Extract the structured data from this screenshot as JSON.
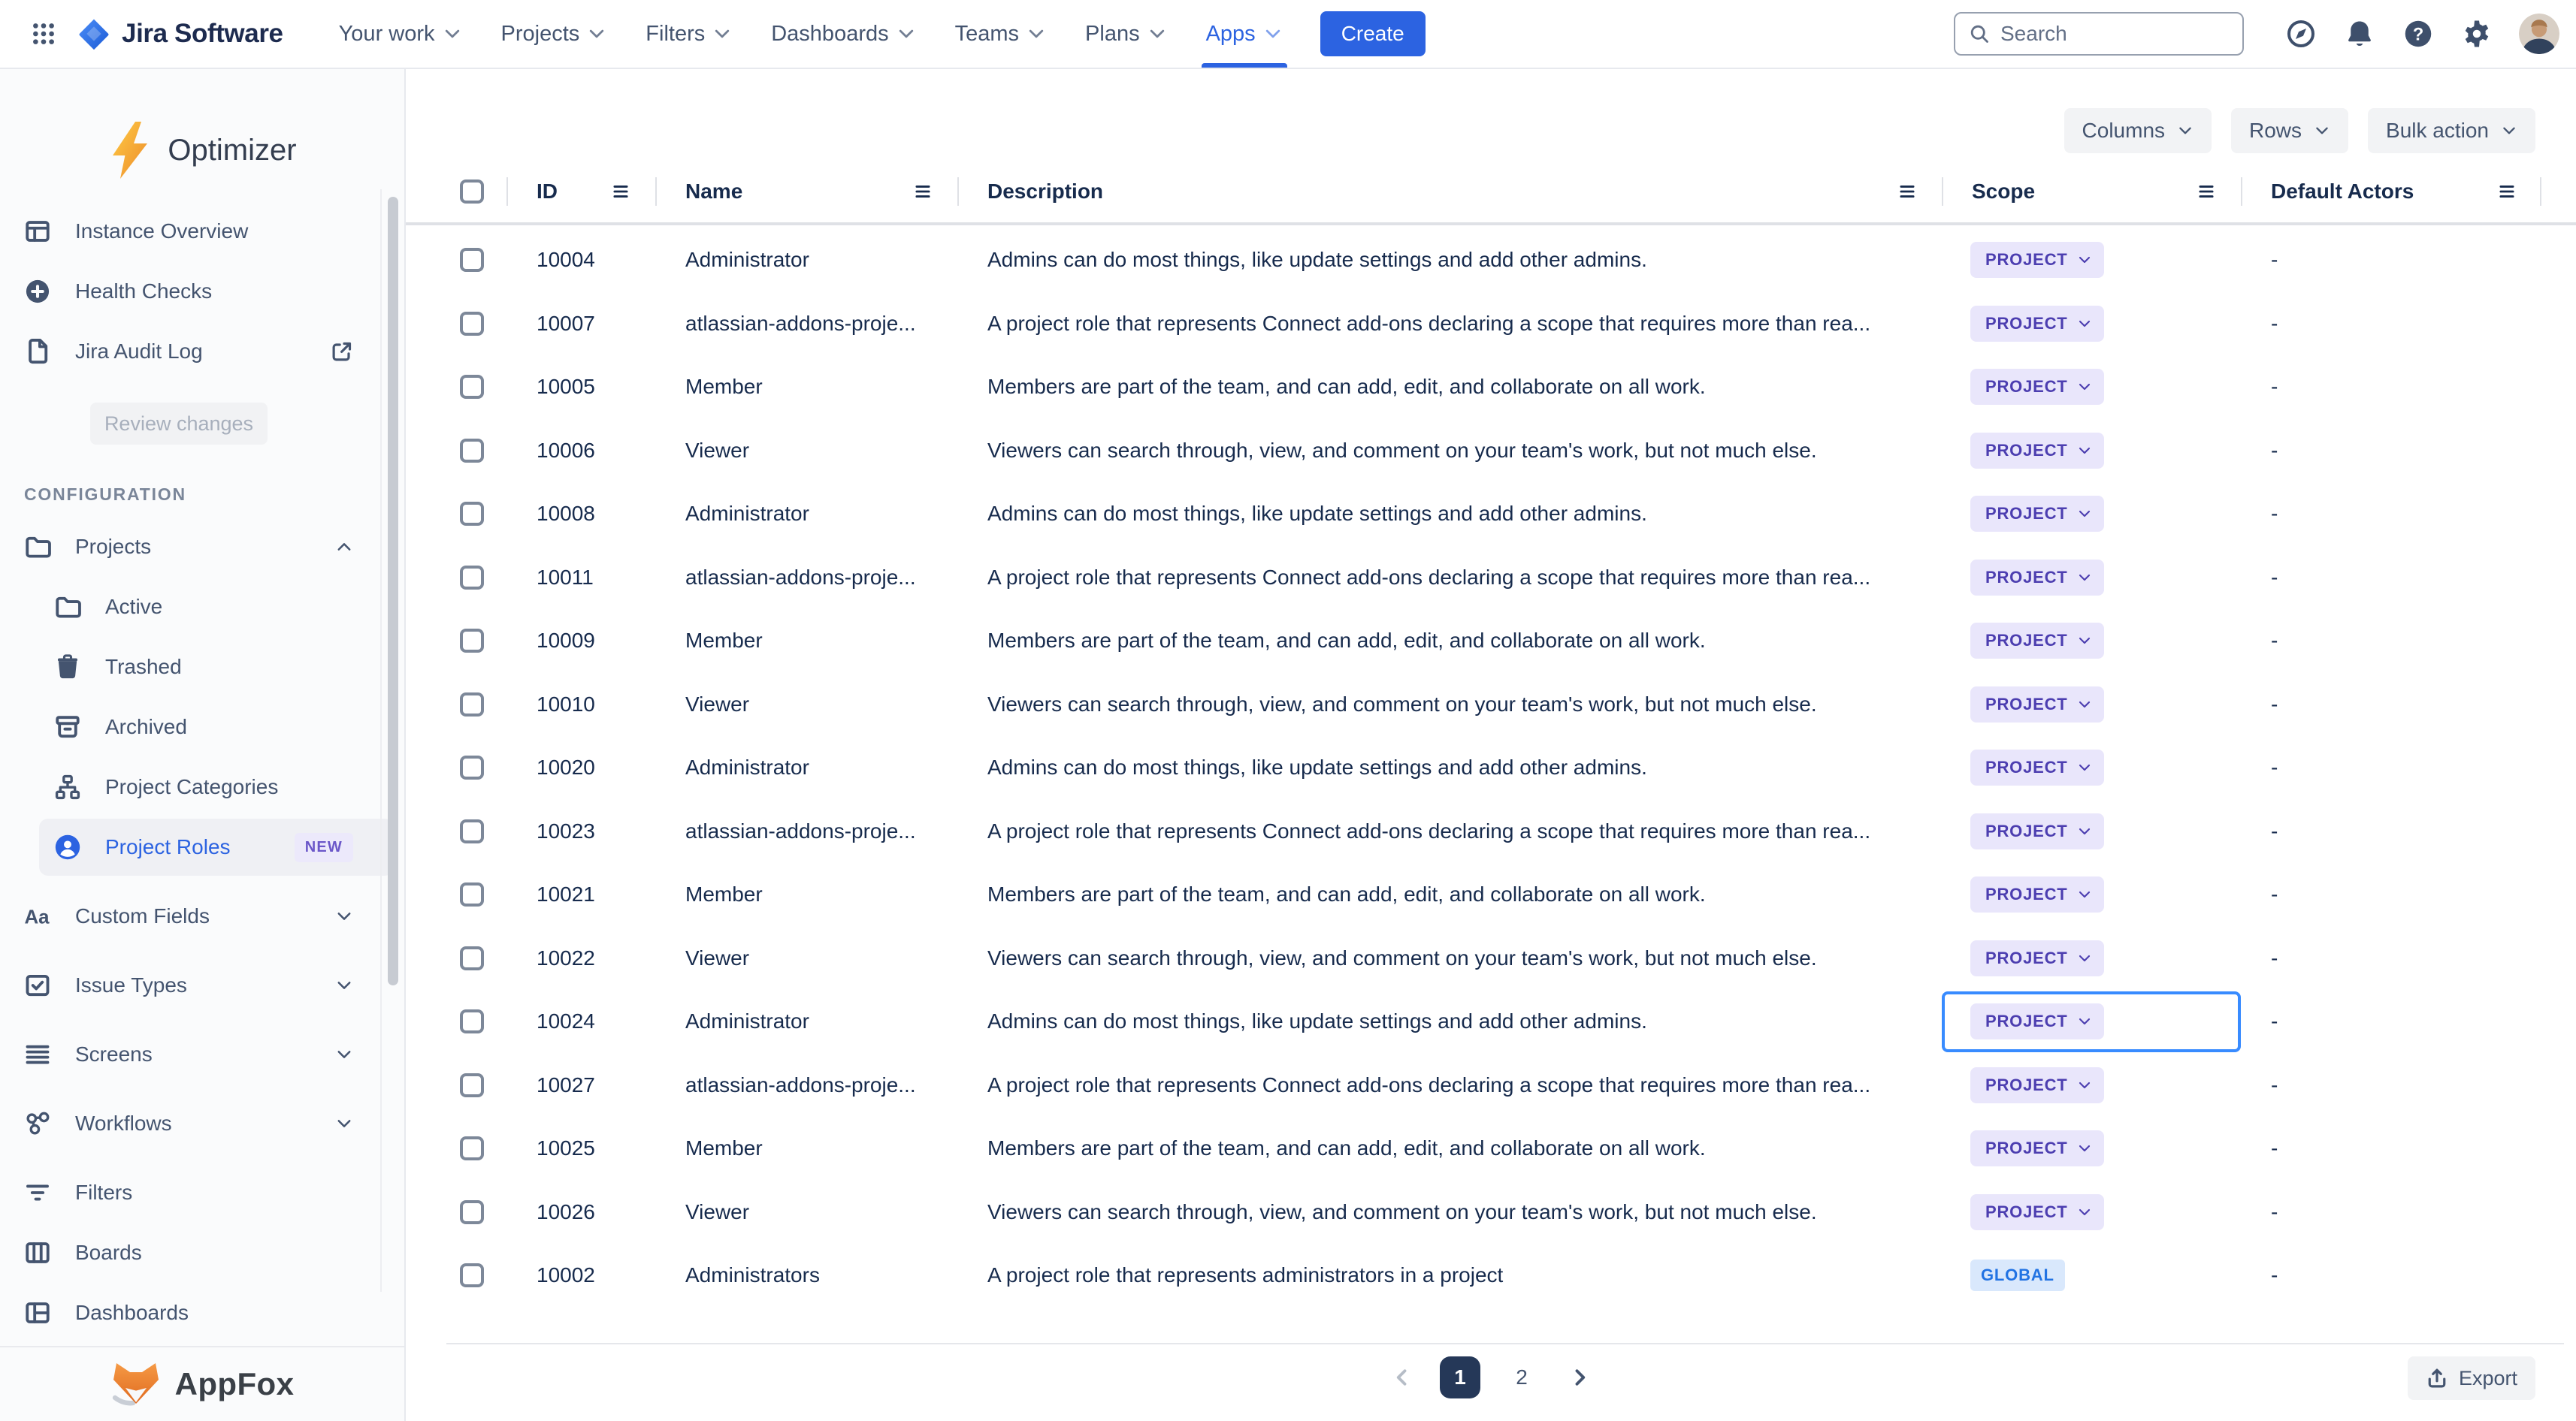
{
  "colors": {
    "accent_blue": "#2C63E1",
    "navy_text": "#172B4D",
    "muted_text": "#44546F",
    "scope_badge_bg": "#E9E6FB",
    "scope_badge_text": "#4C3EB0",
    "global_badge_bg": "#D9E8FC",
    "global_badge_text": "#2273E3",
    "focus_ring": "#388BFF",
    "active_page_bg": "#253858",
    "new_badge_bg": "#ECE9FB",
    "new_badge_text": "#6B57C9",
    "sidebar_bg": "#FAFBFC",
    "bolt_orange": "#EE8E2D",
    "fox_orange": "#EE7E35"
  },
  "topnav": {
    "brand": "Jira Software",
    "menu": [
      {
        "label": "Your work",
        "active": false
      },
      {
        "label": "Projects",
        "active": false
      },
      {
        "label": "Filters",
        "active": false
      },
      {
        "label": "Dashboards",
        "active": false
      },
      {
        "label": "Teams",
        "active": false
      },
      {
        "label": "Plans",
        "active": false
      },
      {
        "label": "Apps",
        "active": true
      }
    ],
    "create_label": "Create",
    "search_placeholder": "Search",
    "icon_buttons": [
      "compass-icon",
      "bell-icon",
      "help-icon",
      "gear-icon"
    ]
  },
  "sidebar": {
    "app_title": "Optimizer",
    "items_top": [
      {
        "label": "Instance Overview",
        "icon": "board-icon"
      },
      {
        "label": "Health Checks",
        "icon": "plus-circle-icon"
      },
      {
        "label": "Jira Audit Log",
        "icon": "document-icon",
        "external": true
      }
    ],
    "review_button_label": "Review changes",
    "section_title": "CONFIGURATION",
    "config_items": [
      {
        "label": "Projects",
        "icon": "folder-icon",
        "level": 0,
        "expand": "up"
      },
      {
        "label": "Active",
        "icon": "folder-icon",
        "level": 1
      },
      {
        "label": "Trashed",
        "icon": "trash-icon",
        "level": 1
      },
      {
        "label": "Archived",
        "icon": "archive-icon",
        "level": 1
      },
      {
        "label": "Project Categories",
        "icon": "sitemap-icon",
        "level": 1
      },
      {
        "label": "Project Roles",
        "icon": "user-circle-icon",
        "level": 1,
        "active": true,
        "badge": "NEW"
      },
      {
        "label": "Custom Fields",
        "icon": "text-icon",
        "level": 0,
        "expand": "down",
        "gap": true
      },
      {
        "label": "Issue Types",
        "icon": "checkbox-icon",
        "level": 0,
        "expand": "down",
        "gap": true
      },
      {
        "label": "Screens",
        "icon": "lines-icon",
        "level": 0,
        "expand": "down",
        "gap": true
      },
      {
        "label": "Workflows",
        "icon": "workflow-icon",
        "level": 0,
        "expand": "down",
        "gap": true
      },
      {
        "label": "Filters",
        "icon": "filter-lines-icon",
        "level": 0,
        "gap": true
      },
      {
        "label": "Boards",
        "icon": "columns-icon",
        "level": 0
      },
      {
        "label": "Dashboards",
        "icon": "dashboard-icon",
        "level": 0
      }
    ],
    "footer_brand": "AppFox"
  },
  "toolbar": {
    "buttons": [
      "Columns",
      "Rows",
      "Bulk action"
    ]
  },
  "table": {
    "columns": [
      "ID",
      "Name",
      "Description",
      "Scope",
      "Default Actors"
    ],
    "rows": [
      {
        "id": "10004",
        "name": "Administrator",
        "description": "Admins can do most things, like update settings and add other admins.",
        "scope": "PROJECT",
        "scope_type": "project",
        "default_actors": "-"
      },
      {
        "id": "10007",
        "name": "atlassian-addons-proje...",
        "description": "A project role that represents Connect add-ons declaring a scope that requires more than rea...",
        "scope": "PROJECT",
        "scope_type": "project",
        "default_actors": "-"
      },
      {
        "id": "10005",
        "name": "Member",
        "description": "Members are part of the team, and can add, edit, and collaborate on all work.",
        "scope": "PROJECT",
        "scope_type": "project",
        "default_actors": "-"
      },
      {
        "id": "10006",
        "name": "Viewer",
        "description": "Viewers can search through, view, and comment on your team's work, but not much else.",
        "scope": "PROJECT",
        "scope_type": "project",
        "default_actors": "-"
      },
      {
        "id": "10008",
        "name": "Administrator",
        "description": "Admins can do most things, like update settings and add other admins.",
        "scope": "PROJECT",
        "scope_type": "project",
        "default_actors": "-"
      },
      {
        "id": "10011",
        "name": "atlassian-addons-proje...",
        "description": "A project role that represents Connect add-ons declaring a scope that requires more than rea...",
        "scope": "PROJECT",
        "scope_type": "project",
        "default_actors": "-"
      },
      {
        "id": "10009",
        "name": "Member",
        "description": "Members are part of the team, and can add, edit, and collaborate on all work.",
        "scope": "PROJECT",
        "scope_type": "project",
        "default_actors": "-"
      },
      {
        "id": "10010",
        "name": "Viewer",
        "description": "Viewers can search through, view, and comment on your team's work, but not much else.",
        "scope": "PROJECT",
        "scope_type": "project",
        "default_actors": "-"
      },
      {
        "id": "10020",
        "name": "Administrator",
        "description": "Admins can do most things, like update settings and add other admins.",
        "scope": "PROJECT",
        "scope_type": "project",
        "default_actors": "-"
      },
      {
        "id": "10023",
        "name": "atlassian-addons-proje...",
        "description": "A project role that represents Connect add-ons declaring a scope that requires more than rea...",
        "scope": "PROJECT",
        "scope_type": "project",
        "default_actors": "-"
      },
      {
        "id": "10021",
        "name": "Member",
        "description": "Members are part of the team, and can add, edit, and collaborate on all work.",
        "scope": "PROJECT",
        "scope_type": "project",
        "default_actors": "-"
      },
      {
        "id": "10022",
        "name": "Viewer",
        "description": "Viewers can search through, view, and comment on your team's work, but not much else.",
        "scope": "PROJECT",
        "scope_type": "project",
        "default_actors": "-"
      },
      {
        "id": "10024",
        "name": "Administrator",
        "description": "Admins can do most things, like update settings and add other admins.",
        "scope": "PROJECT",
        "scope_type": "project",
        "default_actors": "-",
        "focused": true
      },
      {
        "id": "10027",
        "name": "atlassian-addons-proje...",
        "description": "A project role that represents Connect add-ons declaring a scope that requires more than rea...",
        "scope": "PROJECT",
        "scope_type": "project",
        "default_actors": "-"
      },
      {
        "id": "10025",
        "name": "Member",
        "description": "Members are part of the team, and can add, edit, and collaborate on all work.",
        "scope": "PROJECT",
        "scope_type": "project",
        "default_actors": "-"
      },
      {
        "id": "10026",
        "name": "Viewer",
        "description": "Viewers can search through, view, and comment on your team's work, but not much else.",
        "scope": "PROJECT",
        "scope_type": "project",
        "default_actors": "-"
      },
      {
        "id": "10002",
        "name": "Administrators",
        "description": "A project role that represents administrators in a project",
        "scope": "GLOBAL",
        "scope_type": "global",
        "default_actors": "-"
      }
    ]
  },
  "pagination": {
    "pages": [
      "1",
      "2"
    ],
    "active_page": "1",
    "prev_disabled": true
  },
  "export_button": {
    "label": "Export"
  }
}
